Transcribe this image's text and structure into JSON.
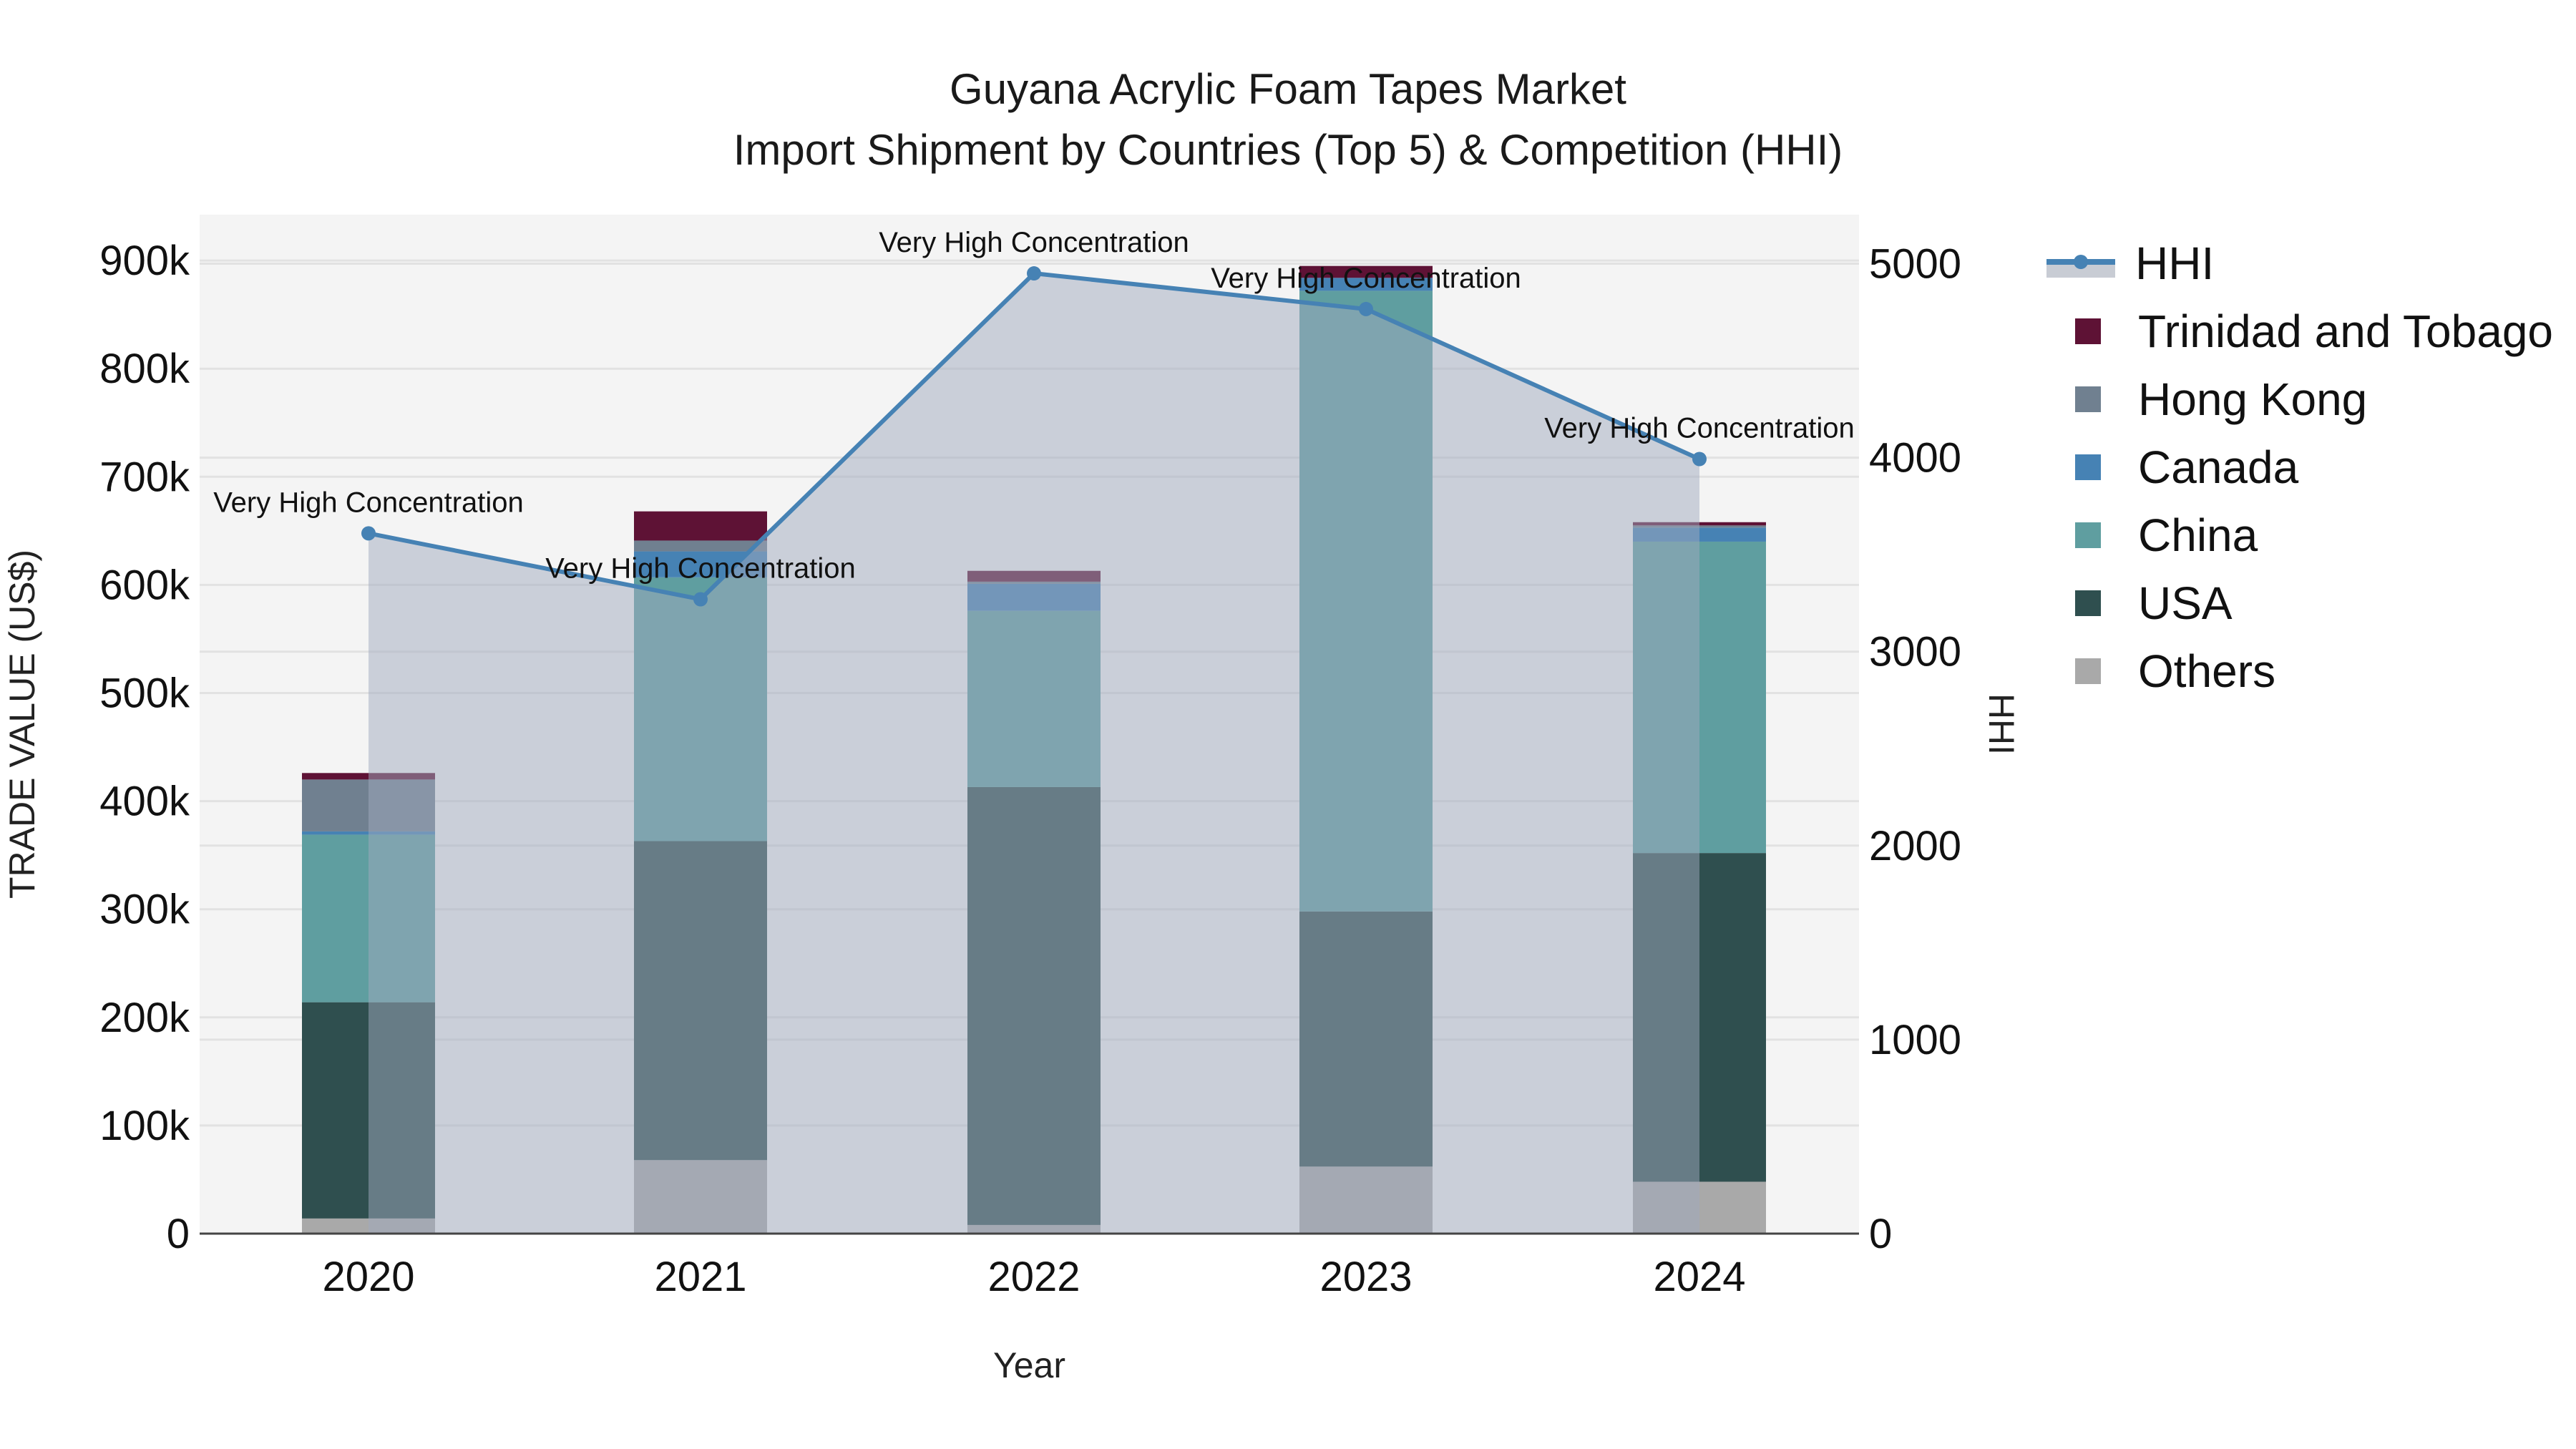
{
  "title": {
    "line1": "Guyana Acrylic Foam Tapes Market",
    "line2": "Import Shipment by Countries (Top 5) & Competition (HHI)"
  },
  "axes": {
    "x_title": "Year",
    "y_left_title": "TRADE VALUE (US$)",
    "y_right_title": "HHI",
    "y_left_ticks": [
      "0",
      "100k",
      "200k",
      "300k",
      "400k",
      "500k",
      "600k",
      "700k",
      "800k",
      "900k"
    ],
    "y_right_ticks": [
      "0",
      "1000",
      "2000",
      "3000",
      "4000",
      "5000"
    ]
  },
  "legend": [
    {
      "name": "HHI",
      "type": "line",
      "color": "#4682b4"
    },
    {
      "name": "Trinidad and Tobago",
      "type": "bar",
      "color": "#5e1235"
    },
    {
      "name": "Hong Kong",
      "type": "bar",
      "color": "#708090"
    },
    {
      "name": "Canada",
      "type": "bar",
      "color": "#4682b4"
    },
    {
      "name": "China",
      "type": "bar",
      "color": "#5f9ea0"
    },
    {
      "name": "USA",
      "type": "bar",
      "color": "#2f4f4f"
    },
    {
      "name": "Others",
      "type": "bar",
      "color": "#a9a9a9"
    }
  ],
  "chart_data": {
    "type": "bar",
    "stacked": true,
    "title": "Guyana Acrylic Foam Tapes Market — Import Shipment by Countries (Top 5) & Competition (HHI)",
    "xlabel": "Year",
    "ylabel": "TRADE VALUE (US$)",
    "y2label": "HHI",
    "categories": [
      "2020",
      "2021",
      "2022",
      "2023",
      "2024"
    ],
    "ylim": [
      0,
      940000
    ],
    "y2lim": [
      0,
      5220
    ],
    "series": [
      {
        "name": "Others",
        "color": "#a9a9a9",
        "values": [
          14000,
          68000,
          8000,
          62000,
          48000
        ]
      },
      {
        "name": "USA",
        "color": "#2f4f4f",
        "values": [
          200000,
          295000,
          405000,
          236000,
          304000
        ]
      },
      {
        "name": "China",
        "color": "#5f9ea0",
        "values": [
          155000,
          244000,
          163000,
          574000,
          288000
        ]
      },
      {
        "name": "Canada",
        "color": "#4682b4",
        "values": [
          3000,
          24000,
          25000,
          12000,
          13000
        ]
      },
      {
        "name": "Hong Kong",
        "color": "#708090",
        "values": [
          48000,
          10000,
          2000,
          0,
          2000
        ]
      },
      {
        "name": "Trinidad and Tobago",
        "color": "#5e1235",
        "values": [
          6000,
          27000,
          10000,
          11000,
          3000
        ]
      }
    ],
    "line_series": {
      "name": "HHI",
      "axis": "right",
      "color": "#4682b4",
      "values": [
        3610,
        3270,
        4950,
        4766,
        3993
      ],
      "labels": [
        "Very High Concentration",
        "Very High Concentration",
        "Very High Concentration",
        "Very High Concentration",
        "Very High Concentration"
      ]
    },
    "grid": true,
    "legend_position": "right"
  }
}
